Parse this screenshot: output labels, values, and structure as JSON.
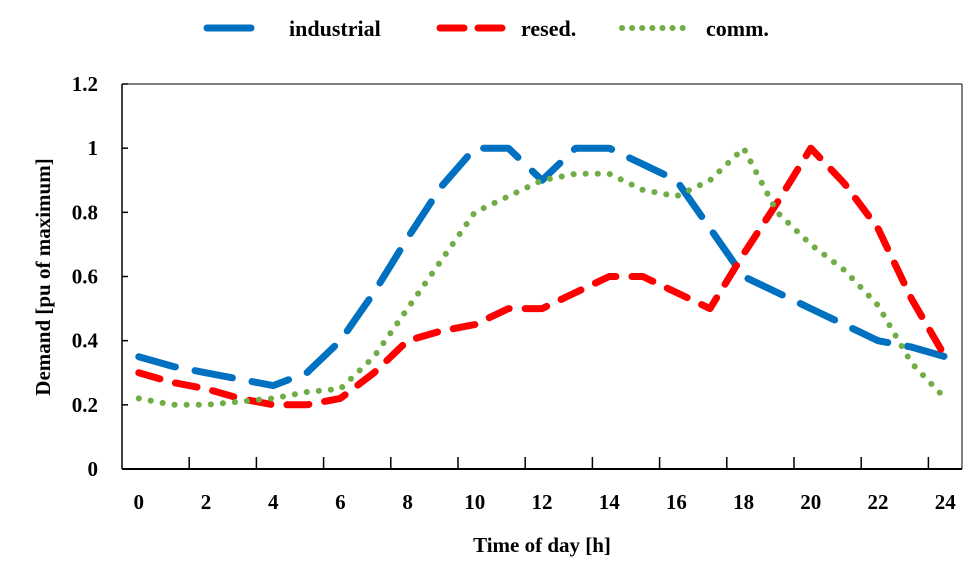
{
  "chart_data": {
    "type": "line",
    "title": "",
    "xlabel": "Time of day [h]",
    "ylabel": "Demand [pu of maximum]",
    "x": [
      0,
      1,
      2,
      3,
      4,
      5,
      6,
      7,
      8,
      9,
      10,
      11,
      12,
      13,
      14,
      15,
      16,
      17,
      18,
      19,
      20,
      21,
      22,
      23,
      24
    ],
    "x_tick_labels": [
      "0",
      "2",
      "4",
      "6",
      "8",
      "10",
      "12",
      "14",
      "16",
      "18",
      "20",
      "22",
      "24"
    ],
    "y_tick_labels": [
      "0",
      "0.2",
      "0.4",
      "0.6",
      "0.8",
      "1",
      "1.2"
    ],
    "ylim": [
      0,
      1.2
    ],
    "grid": false,
    "legend_position": "top",
    "series": [
      {
        "name": "industrial",
        "color": "#0070C0",
        "style": "long-dash",
        "values": [
          0.35,
          0.32,
          0.3,
          0.28,
          0.26,
          0.3,
          0.4,
          0.55,
          0.72,
          0.88,
          1.0,
          1.0,
          0.9,
          1.0,
          1.0,
          0.95,
          0.9,
          0.75,
          0.6,
          0.55,
          0.5,
          0.45,
          0.4,
          0.38,
          0.35
        ]
      },
      {
        "name": "resed.",
        "color": "#FF0000",
        "style": "dash",
        "values": [
          0.3,
          0.27,
          0.25,
          0.22,
          0.2,
          0.2,
          0.22,
          0.3,
          0.4,
          0.43,
          0.45,
          0.5,
          0.5,
          0.55,
          0.6,
          0.6,
          0.55,
          0.5,
          0.67,
          0.83,
          1.0,
          0.89,
          0.75,
          0.53,
          0.35
        ]
      },
      {
        "name": "comm.",
        "color": "#70AD47",
        "style": "dot",
        "values": [
          0.22,
          0.2,
          0.2,
          0.21,
          0.22,
          0.24,
          0.25,
          0.35,
          0.5,
          0.65,
          0.8,
          0.85,
          0.9,
          0.92,
          0.92,
          0.87,
          0.85,
          0.9,
          1.0,
          0.8,
          0.7,
          0.62,
          0.51,
          0.33,
          0.22
        ]
      }
    ]
  }
}
